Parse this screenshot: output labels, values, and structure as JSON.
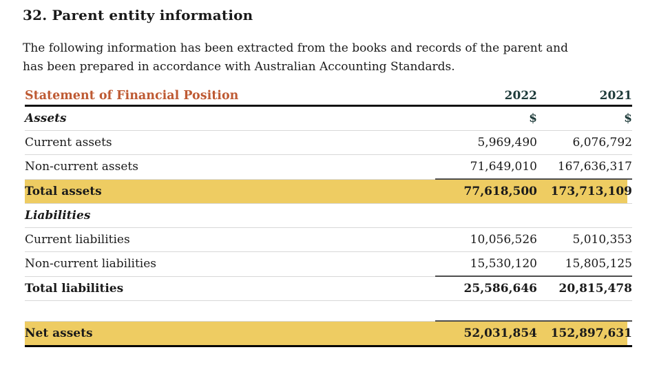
{
  "page": {
    "heading": "32. Parent entity information",
    "intro_lines": [
      "The following information has been extracted from the books and records of the parent and",
      "has been prepared in accordance with Australian Accounting Standards."
    ]
  },
  "table": {
    "title": "Statement of Financial Position",
    "columns": [
      "2022",
      "2021"
    ],
    "currency_symbol": "$",
    "colors": {
      "title_text": "#be5a33",
      "year_text": "#1e3b3a",
      "highlight_background": "#eecc62",
      "heavy_rule": "#121212",
      "subtotal_rule": "#4d4d4d",
      "row_rule": "#d8d8d8"
    },
    "rows": [
      {
        "label": "Assets",
        "style": "section",
        "show_currency": true,
        "v2022": "",
        "v2021": ""
      },
      {
        "label": "Current assets",
        "style": "item",
        "show_currency": false,
        "v2022": "5,969,490",
        "v2021": "6,076,792"
      },
      {
        "label": "Non-current assets",
        "style": "item",
        "show_currency": false,
        "v2022": "71,649,010",
        "v2021": "167,636,317"
      },
      {
        "label": "Total assets",
        "style": "total-highlight",
        "show_currency": false,
        "v2022": "77,618,500",
        "v2021": "173,713,109"
      },
      {
        "label": "Liabilities",
        "style": "section",
        "show_currency": false,
        "v2022": "",
        "v2021": ""
      },
      {
        "label": "Current liabilities",
        "style": "item",
        "show_currency": false,
        "v2022": "10,056,526",
        "v2021": "5,010,353"
      },
      {
        "label": "Non-current liabilities",
        "style": "item",
        "show_currency": false,
        "v2022": "15,530,120",
        "v2021": "15,805,125"
      },
      {
        "label": "Total liabilities",
        "style": "total",
        "show_currency": false,
        "v2022": "25,586,646",
        "v2021": "20,815,478"
      },
      {
        "label": "",
        "style": "spacer",
        "show_currency": false,
        "v2022": "",
        "v2021": ""
      },
      {
        "label": "Net assets",
        "style": "net-highlight",
        "show_currency": false,
        "v2022": "52,031,854",
        "v2021": "152,897,631"
      }
    ]
  }
}
